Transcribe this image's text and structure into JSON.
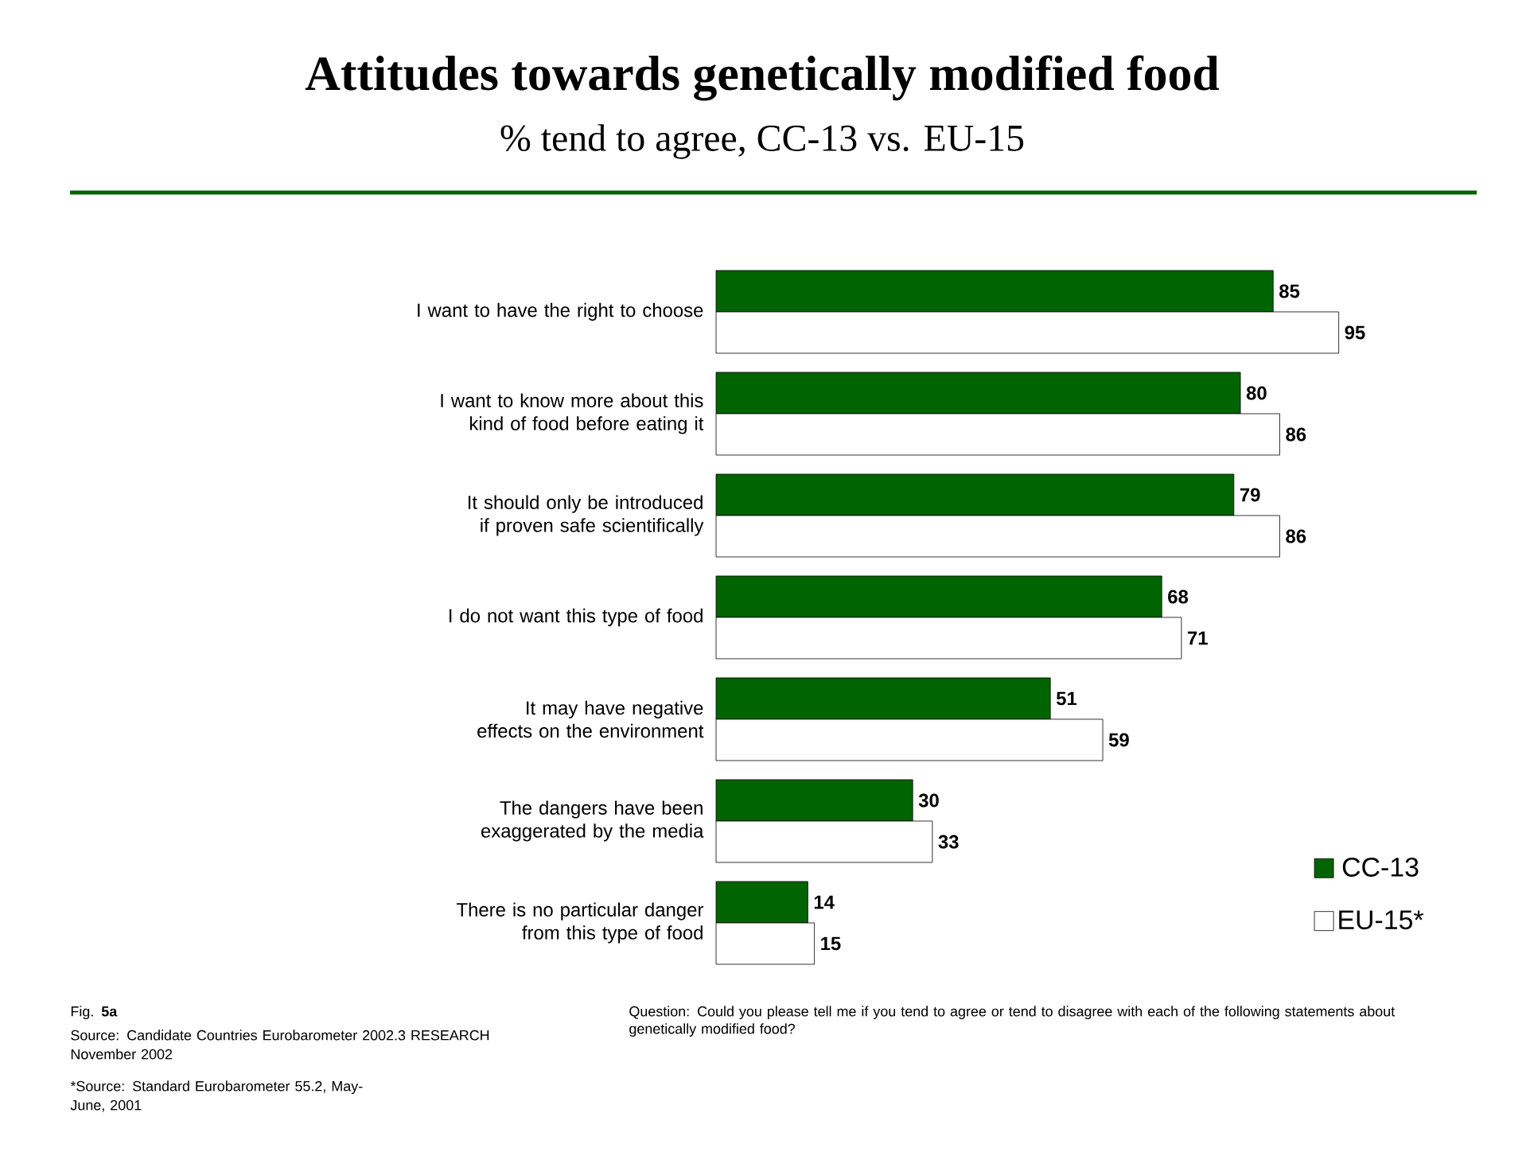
{
  "chart_data": {
    "type": "bar",
    "orientation": "horizontal",
    "title": "Attitudes towards genetically modified food",
    "subtitle": "% tend to agree, CC-13 vs. EU-15",
    "categories": [
      "I want to have the right to choose",
      "I want to know more about this kind of food before eating it",
      "It should only be introduced if proven safe scientifically",
      "I do not want this type of food",
      "It may have negative effects on the environment",
      "The dangers have been exaggerated by the media",
      "There is no particular danger from this type of food"
    ],
    "series": [
      {
        "name": "CC-13",
        "color": "#006400",
        "values": [
          85,
          80,
          79,
          68,
          51,
          30,
          14
        ]
      },
      {
        "name": "EU-15*",
        "color": "#ffffff",
        "values": [
          95,
          86,
          86,
          71,
          59,
          33,
          15
        ]
      }
    ],
    "data_labels": true,
    "legend": "bottom right",
    "annotations": [
      "Fig. **5a**",
      "Source: Candidate Countries Eurobarometer 2002.3 RESEARCH November 2002",
      "*Source: Standard Eurobarometer 55.2, May-June, 2001",
      "Question: Could you please tell me if you tend to agree or tend to disagree with each of the following statements about genetically modified food?"
    ]
  }
}
